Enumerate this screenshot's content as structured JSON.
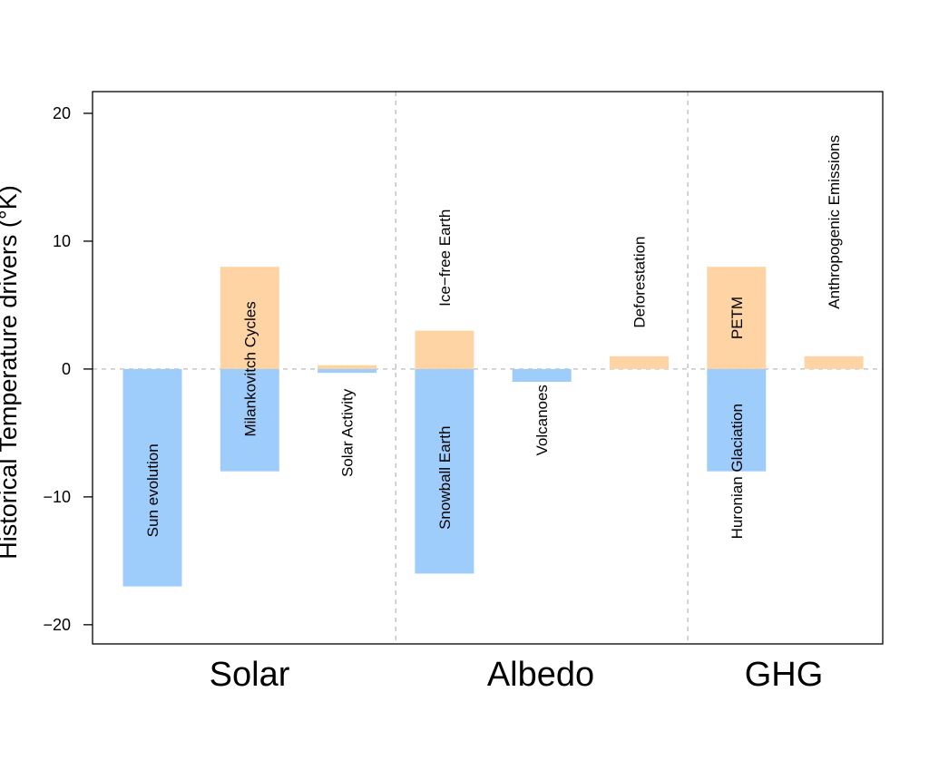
{
  "chart_data": {
    "type": "bar",
    "title": "",
    "xlabel": "",
    "ylabel": "Historical Temperature drivers (°K)",
    "ylim": [
      -21.5,
      21.7
    ],
    "yticks": [
      -20,
      -10,
      0,
      10,
      20
    ],
    "grid": false,
    "legend": "none",
    "colors": {
      "warming": "#FED4A4",
      "cooling": "#9ECDFC",
      "guide": "#BBBBBB",
      "axis": "#000000"
    },
    "groups": [
      {
        "label": "Solar",
        "members": [
          "sun-evolution",
          "milankovitch-cycles",
          "solar-activity"
        ]
      },
      {
        "label": "Albedo",
        "members": [
          "ice-free-earth",
          "snowball-earth",
          "volcanoes",
          "deforestation"
        ]
      },
      {
        "label": "GHG",
        "members": [
          "petm",
          "huronian-glaciation",
          "anthropogenic-emissions"
        ]
      }
    ],
    "slots": 8,
    "bars": [
      {
        "id": "sun-evolution",
        "slot": 0,
        "value": -17,
        "label": "Sun evolution",
        "label_y": -9.5
      },
      {
        "id": "milankovitch-cycles-warm",
        "slot": 1,
        "value": 8,
        "label": "",
        "label_y": null
      },
      {
        "id": "milankovitch-cycles-cool",
        "slot": 1,
        "value": -8,
        "label": "Milankovitch Cycles",
        "label_y": 0
      },
      {
        "id": "solar-activity-warm",
        "slot": 2,
        "value": 0.3,
        "label": "",
        "label_y": null
      },
      {
        "id": "solar-activity-cool",
        "slot": 2,
        "value": -0.3,
        "label": "Solar Activity",
        "label_y": -5
      },
      {
        "id": "ice-free-earth",
        "slot": 3,
        "value": 3,
        "label": "Ice−free Earth",
        "label_y": 8.7
      },
      {
        "id": "snowball-earth",
        "slot": 3,
        "value": -16,
        "label": "Snowball Earth",
        "label_y": -8.5
      },
      {
        "id": "volcanoes",
        "slot": 4,
        "value": -1,
        "label": "Volcanoes",
        "label_y": -4
      },
      {
        "id": "deforestation",
        "slot": 5,
        "value": 1,
        "label": "Deforestation",
        "label_y": 6.8
      },
      {
        "id": "petm",
        "slot": 6,
        "value": 8,
        "label": "PETM",
        "label_y": 4
      },
      {
        "id": "huronian-glaciation",
        "slot": 6,
        "value": -8,
        "label": "Huronian Glaciation",
        "label_y": -8
      },
      {
        "id": "anthropogenic-emissions",
        "slot": 7,
        "value": 1,
        "label": "Anthropogenic Emissions",
        "label_y": 11.5
      }
    ],
    "separators_after_slot": [
      2,
      5
    ]
  }
}
